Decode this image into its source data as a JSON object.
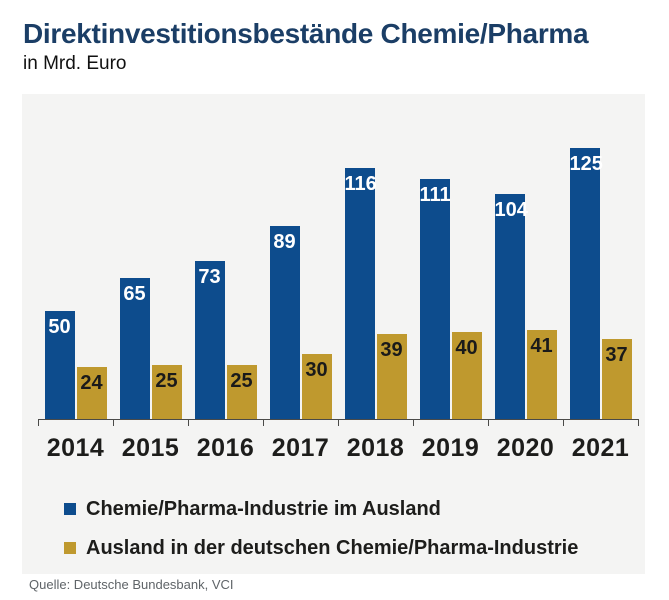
{
  "header": {
    "title": "Direktinvestitionsbestände Chemie/Pharma",
    "subtitle": "in Mrd. Euro"
  },
  "chart_data": {
    "type": "bar",
    "title": "Direktinvestitionsbestände Chemie/Pharma",
    "subtitle": "in Mrd. Euro",
    "ylabel": "Mrd. Euro",
    "categories": [
      "2014",
      "2015",
      "2016",
      "2017",
      "2018",
      "2019",
      "2020",
      "2021"
    ],
    "series": [
      {
        "name": "Chemie/Pharma-Industrie im Ausland",
        "color": "#0d4c8d",
        "label_color": "#ffffff",
        "values": [
          50,
          65,
          73,
          89,
          116,
          111,
          104,
          125
        ]
      },
      {
        "name": "Ausland in der deutschen Chemie/Pharma-Industrie",
        "color": "#bf992e",
        "label_color": "#1a1a1a",
        "values": [
          24,
          25,
          25,
          30,
          39,
          40,
          41,
          37
        ]
      }
    ],
    "ylim": [
      0,
      150
    ],
    "grid": false,
    "value_labels": true,
    "legend_position": "bottom-left"
  },
  "legend": {
    "items": [
      {
        "label": "Chemie/Pharma-Industrie im Ausland",
        "color": "#0d4c8d"
      },
      {
        "label": "Ausland in der deutschen Chemie/Pharma-Industrie",
        "color": "#bf992e"
      }
    ]
  },
  "footer": {
    "source": "Quelle: Deutsche Bundesbank, VCI"
  },
  "colors": {
    "bar_blue": "#0d4c8d",
    "bar_gold": "#bf992e",
    "panel_background": "#f4f4f3",
    "title_navy": "#1b3e66",
    "axis": "#4a4a48",
    "text_dark": "#1d1d1b",
    "source_gray": "#5f6468"
  }
}
